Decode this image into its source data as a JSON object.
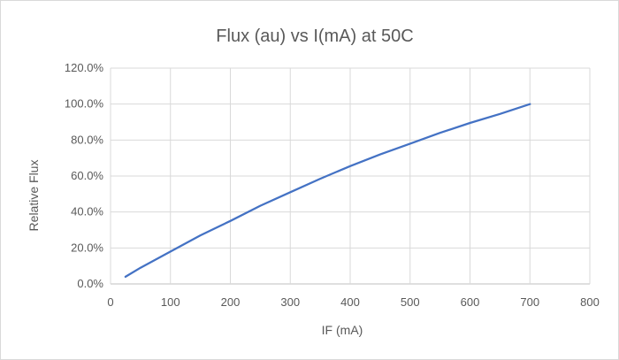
{
  "colors": {
    "series": "#4472c4",
    "grid": "#d9d9d9",
    "text": "#595959"
  },
  "chart_data": {
    "type": "line",
    "title": "Flux (au) vs I(mA) at 50C",
    "xlabel": "IF (mA)",
    "ylabel": "Relative Flux",
    "xlim": [
      0,
      800
    ],
    "ylim": [
      0,
      1.2
    ],
    "x_ticks": [
      0,
      100,
      200,
      300,
      400,
      500,
      600,
      700,
      800
    ],
    "x_tick_labels": [
      "0",
      "100",
      "200",
      "300",
      "400",
      "500",
      "600",
      "700",
      "800"
    ],
    "y_ticks": [
      0,
      0.2,
      0.4,
      0.6,
      0.8,
      1.0,
      1.2
    ],
    "y_tick_labels": [
      "0.0%",
      "20.0%",
      "40.0%",
      "60.0%",
      "80.0%",
      "100.0%",
      "120.0%"
    ],
    "grid": true,
    "legend": "none",
    "series": [
      {
        "x": [
          25,
          50,
          100,
          150,
          200,
          250,
          300,
          350,
          400,
          450,
          500,
          550,
          600,
          650,
          700
        ],
        "y": [
          0.04,
          0.09,
          0.18,
          0.27,
          0.35,
          0.435,
          0.51,
          0.585,
          0.655,
          0.72,
          0.78,
          0.84,
          0.895,
          0.945,
          1.0
        ]
      }
    ]
  }
}
